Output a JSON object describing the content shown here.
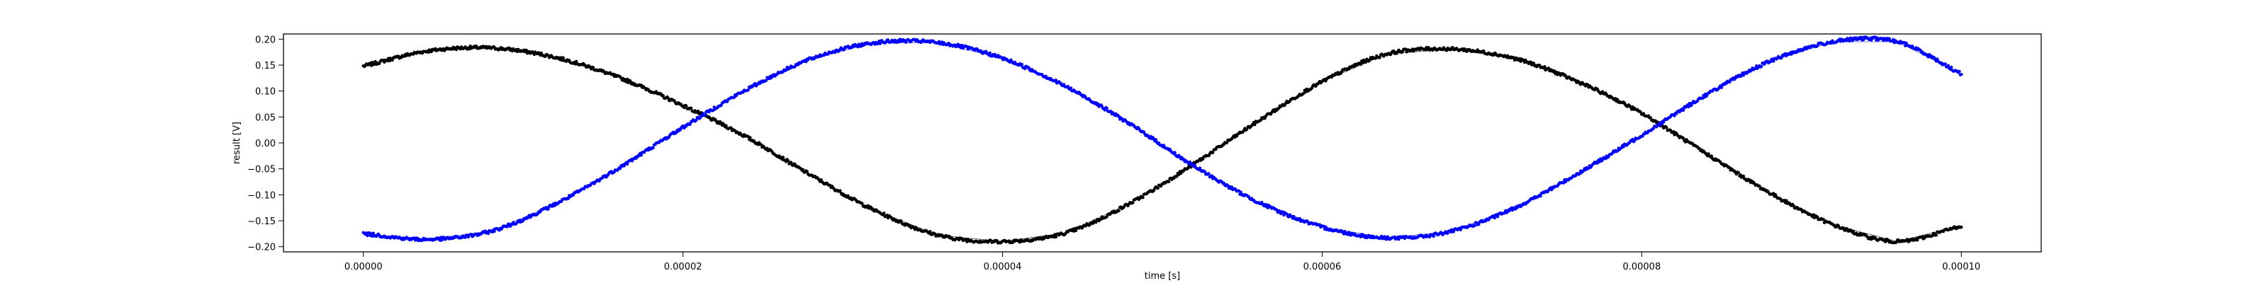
{
  "chart_data": {
    "type": "scatter",
    "title": "",
    "xlabel": "time [s]",
    "ylabel": "result [V]",
    "xlim": [
      -5e-06,
      0.000105
    ],
    "ylim": [
      -0.21,
      0.21
    ],
    "grid": false,
    "x_ticks": [
      0,
      2e-05,
      4e-05,
      6e-05,
      8e-05,
      0.0001
    ],
    "x_tick_labels": [
      "0.00000",
      "0.00002",
      "0.00004",
      "0.00006",
      "0.00008",
      "0.00010"
    ],
    "y_ticks": [
      0.2,
      0.15,
      0.1,
      0.05,
      0.0,
      -0.05,
      -0.1,
      -0.15,
      -0.2
    ],
    "y_tick_labels": [
      "0.20",
      "0.15",
      "0.10",
      "0.05",
      "0.00",
      "−0.05",
      "−0.10",
      "−0.15",
      "−0.20"
    ],
    "series": [
      {
        "color": "#000000",
        "x": [
          0,
          4e-06,
          8e-06,
          1.2e-05,
          1.6e-05,
          2e-05,
          2.4e-05,
          2.8e-05,
          3.2e-05,
          3.6e-05,
          4e-05,
          4.4e-05,
          4.8e-05,
          5.2e-05,
          5.6e-05,
          6e-05,
          6.4e-05,
          6.8e-05,
          7.2e-05,
          7.6e-05,
          8e-05,
          8.4e-05,
          8.8e-05,
          9.2e-05,
          9.6e-05,
          0.0001
        ],
        "y": [
          0.148,
          0.177,
          0.183,
          0.165,
          0.126,
          0.072,
          0.011,
          -0.062,
          -0.13,
          -0.178,
          -0.19,
          -0.173,
          -0.116,
          -0.04,
          0.042,
          0.118,
          0.171,
          0.181,
          0.163,
          0.118,
          0.057,
          -0.02,
          -0.096,
          -0.158,
          -0.19,
          -0.16
        ]
      },
      {
        "color": "#0000ff",
        "x": [
          0,
          4e-06,
          8e-06,
          1.2e-05,
          1.6e-05,
          2e-05,
          2.4e-05,
          2.8e-05,
          3.2e-05,
          3.6e-05,
          4e-05,
          4.4e-05,
          4.8e-05,
          5.2e-05,
          5.6e-05,
          6e-05,
          6.4e-05,
          6.8e-05,
          7.2e-05,
          7.6e-05,
          8e-05,
          8.4e-05,
          8.8e-05,
          9.2e-05,
          9.6e-05,
          0.0001
        ],
        "y": [
          -0.175,
          -0.186,
          -0.17,
          -0.118,
          -0.048,
          0.03,
          0.103,
          0.162,
          0.193,
          0.193,
          0.163,
          0.108,
          0.036,
          -0.045,
          -0.114,
          -0.162,
          -0.183,
          -0.171,
          -0.126,
          -0.059,
          0.015,
          0.092,
          0.157,
          0.195,
          0.195,
          0.133
        ]
      }
    ]
  }
}
